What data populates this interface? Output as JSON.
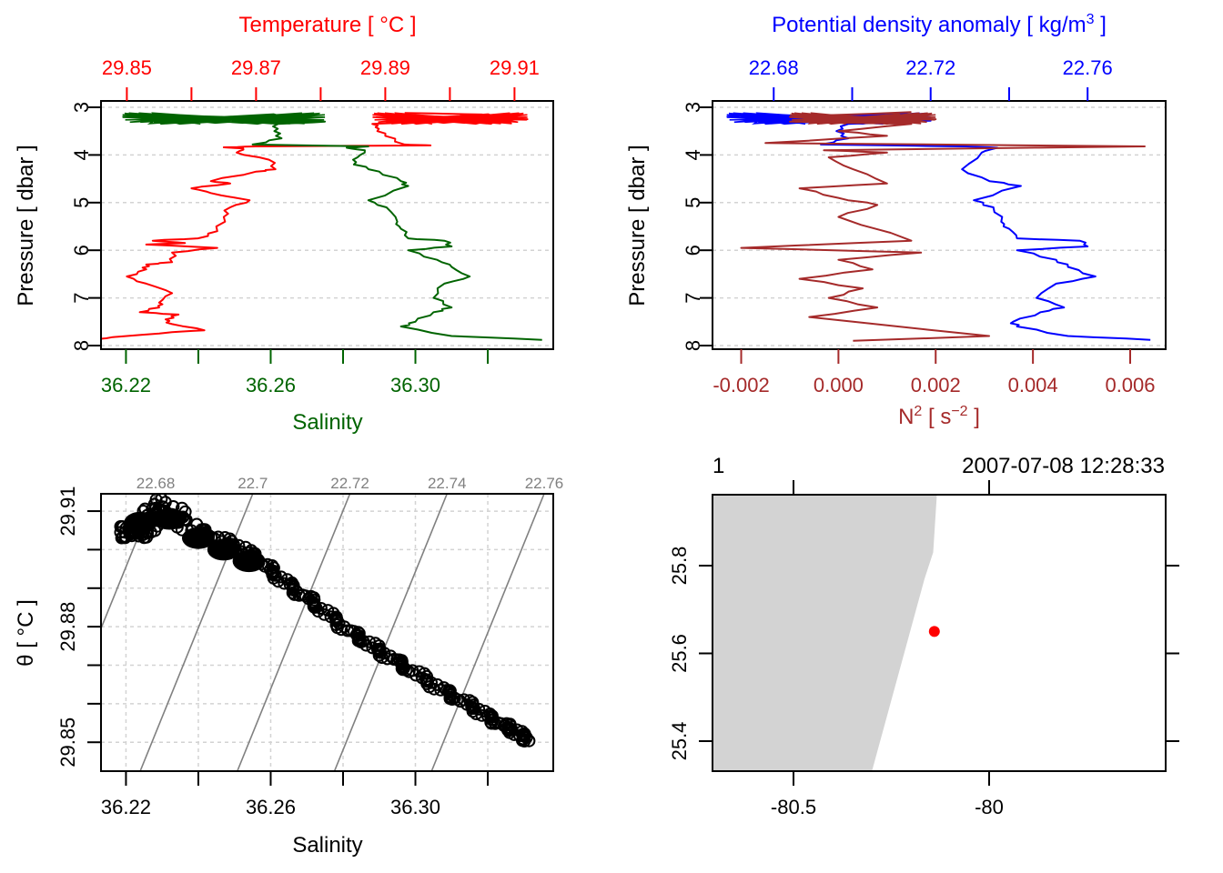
{
  "chart_data": [
    {
      "type": "line",
      "panel": "top-left",
      "title": "",
      "ylabel": "Pressure [ dbar ]",
      "ylim": [
        3,
        8
      ],
      "y_reversed": true,
      "yticks": [
        "3",
        "4",
        "5",
        "6",
        "7",
        "8"
      ],
      "top_axis": {
        "label": "Temperature [ °C ]",
        "range": [
          29.846,
          29.916
        ],
        "ticks": [
          29.85,
          29.86,
          29.87,
          29.88,
          29.89,
          29.9,
          29.91
        ],
        "tick_labels": [
          "29.85",
          "29.87",
          "29.89",
          "29.91"
        ],
        "color": "#ff0000"
      },
      "bottom_axis": {
        "label": "Salinity",
        "range": [
          36.2131,
          36.3381
        ],
        "ticks": [
          36.22,
          36.24,
          36.26,
          36.28,
          36.3,
          36.32
        ],
        "tick_labels": [
          "36.22",
          "36.26",
          "36.30"
        ],
        "color": "#006400"
      },
      "grid": true,
      "series": [
        {
          "name": "Temperature",
          "color": "#ff0000",
          "axis": "top",
          "points": [
            [
              29.893,
              3.12
            ],
            [
              29.905,
              3.15
            ],
            [
              29.899,
              3.2
            ],
            [
              29.912,
              3.25
            ],
            [
              29.896,
              3.3
            ],
            [
              29.888,
              3.35
            ],
            [
              29.889,
              3.45
            ],
            [
              29.89,
              3.6
            ],
            [
              29.893,
              3.78
            ],
            [
              29.897,
              3.8
            ],
            [
              29.87,
              3.82
            ],
            [
              29.865,
              3.84
            ],
            [
              29.868,
              3.86
            ],
            [
              29.867,
              3.95
            ],
            [
              29.872,
              4.1
            ],
            [
              29.873,
              4.3
            ],
            [
              29.87,
              4.35
            ],
            [
              29.863,
              4.55
            ],
            [
              29.866,
              4.6
            ],
            [
              29.86,
              4.7
            ],
            [
              29.863,
              4.8
            ],
            [
              29.869,
              4.95
            ],
            [
              29.866,
              5.1
            ],
            [
              29.865,
              5.3
            ],
            [
              29.864,
              5.6
            ],
            [
              29.861,
              5.75
            ],
            [
              29.854,
              5.8
            ],
            [
              29.859,
              5.85
            ],
            [
              29.853,
              5.88
            ],
            [
              29.864,
              5.95
            ],
            [
              29.857,
              6.05
            ],
            [
              29.857,
              6.25
            ],
            [
              29.853,
              6.3
            ],
            [
              29.853,
              6.4
            ],
            [
              29.85,
              6.55
            ],
            [
              29.853,
              6.7
            ],
            [
              29.857,
              6.9
            ],
            [
              29.855,
              7.1
            ],
            [
              29.855,
              7.2
            ],
            [
              29.852,
              7.3
            ],
            [
              29.858,
              7.35
            ],
            [
              29.856,
              7.45
            ],
            [
              29.857,
              7.55
            ],
            [
              29.862,
              7.68
            ],
            [
              29.857,
              7.72
            ],
            [
              29.85,
              7.8
            ],
            [
              29.845,
              7.87
            ]
          ]
        },
        {
          "name": "Salinity",
          "color": "#006400",
          "axis": "bottom",
          "points": [
            [
              36.219,
              3.2
            ],
            [
              36.23,
              3.15
            ],
            [
              36.245,
              3.25
            ],
            [
              36.26,
              3.22
            ],
            [
              36.27,
              3.28
            ],
            [
              36.275,
              3.3
            ],
            [
              36.262,
              3.35
            ],
            [
              36.261,
              3.5
            ],
            [
              36.263,
              3.65
            ],
            [
              36.255,
              3.78
            ],
            [
              36.287,
              3.82
            ],
            [
              36.281,
              3.85
            ],
            [
              36.286,
              3.9
            ],
            [
              36.284,
              4.05
            ],
            [
              36.283,
              4.2
            ],
            [
              36.29,
              4.35
            ],
            [
              36.296,
              4.55
            ],
            [
              36.298,
              4.65
            ],
            [
              36.287,
              4.95
            ],
            [
              36.292,
              5.1
            ],
            [
              36.295,
              5.4
            ],
            [
              36.296,
              5.55
            ],
            [
              36.298,
              5.75
            ],
            [
              36.308,
              5.8
            ],
            [
              36.31,
              5.92
            ],
            [
              36.298,
              6.0
            ],
            [
              36.306,
              6.2
            ],
            [
              36.31,
              6.35
            ],
            [
              36.315,
              6.55
            ],
            [
              36.308,
              6.7
            ],
            [
              36.305,
              7.0
            ],
            [
              36.31,
              7.2
            ],
            [
              36.305,
              7.3
            ],
            [
              36.3,
              7.5
            ],
            [
              36.296,
              7.6
            ],
            [
              36.31,
              7.8
            ],
            [
              36.335,
              7.88
            ]
          ]
        }
      ]
    },
    {
      "type": "line",
      "panel": "top-right",
      "ylabel": "Pressure [ dbar ]",
      "ylim": [
        3,
        8
      ],
      "y_reversed": true,
      "yticks": [
        "3",
        "4",
        "5",
        "6",
        "7",
        "8"
      ],
      "top_axis": {
        "label": "Potential density anomaly [ kg/m3 ]",
        "range": [
          22.6644,
          22.7799
        ],
        "ticks": [
          22.68,
          22.7,
          22.72,
          22.74,
          22.76
        ],
        "tick_labels": [
          "22.68",
          "22.72",
          "22.76"
        ],
        "color": "#0000ff"
      },
      "bottom_axis": {
        "label": "N2 [ s-2 ]",
        "range": [
          -0.00259,
          0.00673
        ],
        "ticks": [
          -0.002,
          0.0,
          0.002,
          0.004,
          0.006
        ],
        "tick_labels": [
          "-0.002",
          "0.000",
          "0.002",
          "0.004",
          "0.006"
        ],
        "color": "#a52a2a"
      },
      "grid": true,
      "series": [
        {
          "name": "Potential density anomaly",
          "color": "#0000ff",
          "axis": "top",
          "points": [
            [
              22.668,
              3.2
            ],
            [
              22.675,
              3.15
            ],
            [
              22.69,
              3.25
            ],
            [
              22.705,
              3.22
            ],
            [
              22.72,
              3.28
            ],
            [
              22.715,
              3.3
            ],
            [
              22.699,
              3.35
            ],
            [
              22.696,
              3.5
            ],
            [
              22.699,
              3.65
            ],
            [
              22.692,
              3.78
            ],
            [
              22.729,
              3.82
            ],
            [
              22.737,
              3.85
            ],
            [
              22.733,
              3.95
            ],
            [
              22.728,
              4.3
            ],
            [
              22.735,
              4.55
            ],
            [
              22.743,
              4.65
            ],
            [
              22.731,
              4.95
            ],
            [
              22.736,
              5.1
            ],
            [
              22.738,
              5.4
            ],
            [
              22.74,
              5.55
            ],
            [
              22.742,
              5.75
            ],
            [
              22.758,
              5.8
            ],
            [
              22.76,
              5.92
            ],
            [
              22.742,
              6.0
            ],
            [
              22.752,
              6.2
            ],
            [
              22.755,
              6.35
            ],
            [
              22.762,
              6.55
            ],
            [
              22.752,
              6.7
            ],
            [
              22.747,
              7.0
            ],
            [
              22.754,
              7.2
            ],
            [
              22.748,
              7.3
            ],
            [
              22.741,
              7.5
            ],
            [
              22.742,
              7.6
            ],
            [
              22.755,
              7.8
            ],
            [
              22.776,
              7.88
            ]
          ]
        },
        {
          "name": "N2",
          "color": "#a52a2a",
          "axis": "bottom",
          "points": [
            [
              0.0015,
              3.1
            ],
            [
              -0.001,
              3.2
            ],
            [
              0.002,
              3.25
            ],
            [
              -0.001,
              3.3
            ],
            [
              0.0015,
              3.35
            ],
            [
              0.0,
              3.5
            ],
            [
              0.001,
              3.6
            ],
            [
              -0.0015,
              3.75
            ],
            [
              0.0063,
              3.82
            ],
            [
              -0.0003,
              3.9
            ],
            [
              0.001,
              3.95
            ],
            [
              -0.0002,
              4.05
            ],
            [
              0.0003,
              4.3
            ],
            [
              0.001,
              4.6
            ],
            [
              -0.0008,
              4.7
            ],
            [
              0.0,
              4.9
            ],
            [
              0.0008,
              5.05
            ],
            [
              0.0,
              5.3
            ],
            [
              0.0015,
              5.8
            ],
            [
              -0.002,
              5.95
            ],
            [
              0.0017,
              6.05
            ],
            [
              0.0,
              6.2
            ],
            [
              0.0007,
              6.4
            ],
            [
              -0.0008,
              6.6
            ],
            [
              0.0005,
              6.8
            ],
            [
              -0.0002,
              7.0
            ],
            [
              0.0008,
              7.2
            ],
            [
              -0.0006,
              7.4
            ],
            [
              0.0031,
              7.8
            ],
            [
              0.0003,
              7.9
            ]
          ]
        }
      ]
    },
    {
      "type": "scatter",
      "panel": "bottom-left",
      "xlabel": "Salinity",
      "ylabel": "θ [ °C ]",
      "xlim": [
        36.2131,
        36.3381
      ],
      "ylim": [
        29.8425,
        29.9145
      ],
      "xticks": [
        36.22,
        36.24,
        36.26,
        36.28,
        36.3,
        36.32
      ],
      "xtick_labels": [
        "36.22",
        "36.26",
        "36.30"
      ],
      "yticks": [
        29.85,
        29.86,
        29.87,
        29.88,
        29.89,
        29.9,
        29.91
      ],
      "ytick_labels": [
        "29.85",
        "29.88",
        "29.91"
      ],
      "grid": true,
      "isopycnals": {
        "color": "#808080",
        "levels": [
          "22.68",
          "22.7",
          "22.72",
          "22.74",
          "22.76"
        ]
      },
      "marker": "open-circle",
      "points_summary": "dense diagonal cloud from (36.218, 29.904) / (36.229, 29.913) down to (36.332, 29.851)"
    },
    {
      "type": "map",
      "panel": "bottom-right",
      "title_left": "1",
      "title_right": "2007-07-08 12:28:33",
      "xlim": [
        -80.75,
        -79.55
      ],
      "ylim": [
        25.33,
        25.97
      ],
      "xticks": [
        -80.5,
        -80
      ],
      "xtick_labels": [
        "-80.5",
        "-80"
      ],
      "yticks": [
        25.4,
        25.6,
        25.8
      ],
      "ytick_labels": [
        "25.4",
        "25.6",
        "25.8"
      ],
      "land_color": "#d3d3d3",
      "station": {
        "lon": -80.14,
        "lat": 25.65,
        "color": "#ff0000"
      }
    }
  ]
}
